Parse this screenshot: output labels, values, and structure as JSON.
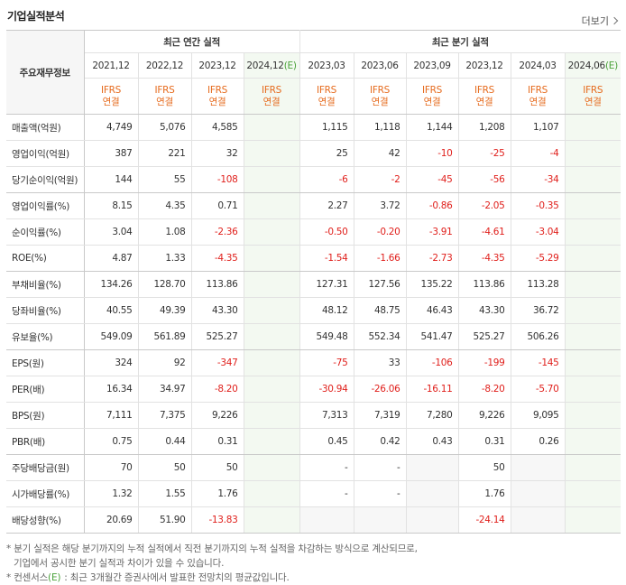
{
  "header": {
    "title": "기업실적분석",
    "more": "더보기"
  },
  "table": {
    "corner": "주요재무정보",
    "groups": [
      {
        "label": "최근 연간 실적",
        "columns": [
          {
            "period": "2021,12",
            "basis": "IFRS",
            "scope": "연결"
          },
          {
            "period": "2022,12",
            "basis": "IFRS",
            "scope": "연결"
          },
          {
            "period": "2023,12",
            "basis": "IFRS",
            "scope": "연결"
          },
          {
            "period": "2024,12",
            "estimate": "(E)",
            "basis": "IFRS",
            "scope": "연결"
          }
        ]
      },
      {
        "label": "최근 분기 실적",
        "columns": [
          {
            "period": "2023,03",
            "basis": "IFRS",
            "scope": "연결"
          },
          {
            "period": "2023,06",
            "basis": "IFRS",
            "scope": "연결"
          },
          {
            "period": "2023,09",
            "basis": "IFRS",
            "scope": "연결"
          },
          {
            "period": "2023,12",
            "basis": "IFRS",
            "scope": "연결"
          },
          {
            "period": "2024,03",
            "basis": "IFRS",
            "scope": "연결"
          },
          {
            "period": "2024,06",
            "estimate": "(E)",
            "basis": "IFRS",
            "scope": "연결"
          }
        ]
      }
    ],
    "rows": [
      {
        "label": "매출액(억원)",
        "cells": [
          "4,749",
          "5,076",
          "4,585",
          null,
          "1,115",
          "1,118",
          "1,144",
          "1,208",
          "1,107",
          null
        ]
      },
      {
        "label": "영업이익(억원)",
        "cells": [
          "387",
          "221",
          "32",
          null,
          "25",
          "42",
          "-10",
          "-25",
          "-4",
          null
        ]
      },
      {
        "label": "당기순이익(억원)",
        "cells": [
          "144",
          "55",
          "-108",
          null,
          "-6",
          "-2",
          "-45",
          "-56",
          "-34",
          null
        ]
      },
      {
        "label": "영업이익률(%)",
        "cells": [
          "8.15",
          "4.35",
          "0.71",
          null,
          "2.27",
          "3.72",
          "-0.86",
          "-2.05",
          "-0.35",
          null
        ]
      },
      {
        "label": "순이익률(%)",
        "cells": [
          "3.04",
          "1.08",
          "-2.36",
          null,
          "-0.50",
          "-0.20",
          "-3.91",
          "-4.61",
          "-3.04",
          null
        ]
      },
      {
        "label": "ROE(%)",
        "cells": [
          "4.87",
          "1.33",
          "-4.35",
          null,
          "-1.54",
          "-1.66",
          "-2.73",
          "-4.35",
          "-5.29",
          null
        ]
      },
      {
        "label": "부채비율(%)",
        "cells": [
          "134.26",
          "128.70",
          "113.86",
          null,
          "127.31",
          "127.56",
          "135.22",
          "113.86",
          "113.28",
          null
        ]
      },
      {
        "label": "당좌비율(%)",
        "cells": [
          "40.55",
          "49.39",
          "43.30",
          null,
          "48.12",
          "48.75",
          "46.43",
          "43.30",
          "36.72",
          null
        ]
      },
      {
        "label": "유보율(%)",
        "cells": [
          "549.09",
          "561.89",
          "525.27",
          null,
          "549.48",
          "552.34",
          "541.47",
          "525.27",
          "506.26",
          null
        ]
      },
      {
        "label": "EPS(원)",
        "cells": [
          "324",
          "92",
          "-347",
          null,
          "-75",
          "33",
          "-106",
          "-199",
          "-145",
          null
        ]
      },
      {
        "label": "PER(배)",
        "cells": [
          "16.34",
          "34.97",
          "-8.20",
          null,
          "-30.94",
          "-26.06",
          "-16.11",
          "-8.20",
          "-5.70",
          null
        ]
      },
      {
        "label": "BPS(원)",
        "cells": [
          "7,111",
          "7,375",
          "9,226",
          null,
          "7,313",
          "7,319",
          "7,280",
          "9,226",
          "9,095",
          null
        ]
      },
      {
        "label": "PBR(배)",
        "cells": [
          "0.75",
          "0.44",
          "0.31",
          null,
          "0.45",
          "0.42",
          "0.43",
          "0.31",
          "0.26",
          null
        ]
      },
      {
        "label": "주당배당금(원)",
        "cells": [
          "70",
          "50",
          "50",
          null,
          "-",
          "-",
          null,
          "50",
          null,
          null
        ]
      },
      {
        "label": "시가배당률(%)",
        "cells": [
          "1.32",
          "1.55",
          "1.76",
          null,
          "-",
          "-",
          null,
          "1.76",
          null,
          null
        ]
      },
      {
        "label": "배당성향(%)",
        "cells": [
          "20.69",
          "51.90",
          "-13.83",
          null,
          null,
          null,
          null,
          "-24.14",
          null,
          null
        ]
      }
    ],
    "row_groups_end": [
      "당기순이익(억원)",
      "ROE(%)",
      "유보율(%)",
      "PBR(배)"
    ]
  },
  "notes": [
    {
      "lines": [
        "분기 실적은 해당 분기까지의 누적 실적에서 직전 분기까지의 누적 실적을 차감하는 방식으로 계산되므로,",
        "기업에서 공시한 분기 실적과 차이가 있을 수 있습니다."
      ]
    },
    {
      "term": "컨센서스",
      "estimate": "(E)",
      "text": ": 최근 3개월간 증권사에서 발표한 전망치의 평균값입니다."
    }
  ]
}
